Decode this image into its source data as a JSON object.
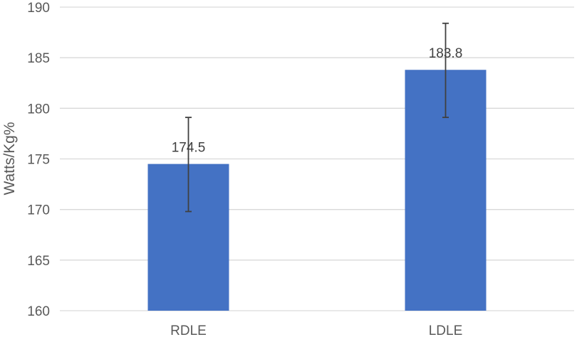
{
  "chart_data": {
    "type": "bar",
    "categories": [
      "RDLE",
      "LDLE"
    ],
    "values": [
      174.5,
      183.8
    ],
    "data_labels": [
      "174.5",
      "183.8"
    ],
    "error_bars": [
      {
        "low": 169.8,
        "high": 179.1
      },
      {
        "low": 179.1,
        "high": 188.4
      }
    ],
    "title": "",
    "xlabel": "",
    "ylabel": "Watts/Kg%",
    "ylim": [
      160,
      190
    ],
    "yticks": [
      "160",
      "165",
      "170",
      "175",
      "180",
      "185",
      "190"
    ],
    "grid": true,
    "legend": "none",
    "colors": {
      "bar": "#4472c4",
      "grid": "#d9d9d9",
      "error_bar": "#404040",
      "text": "#595959"
    }
  }
}
